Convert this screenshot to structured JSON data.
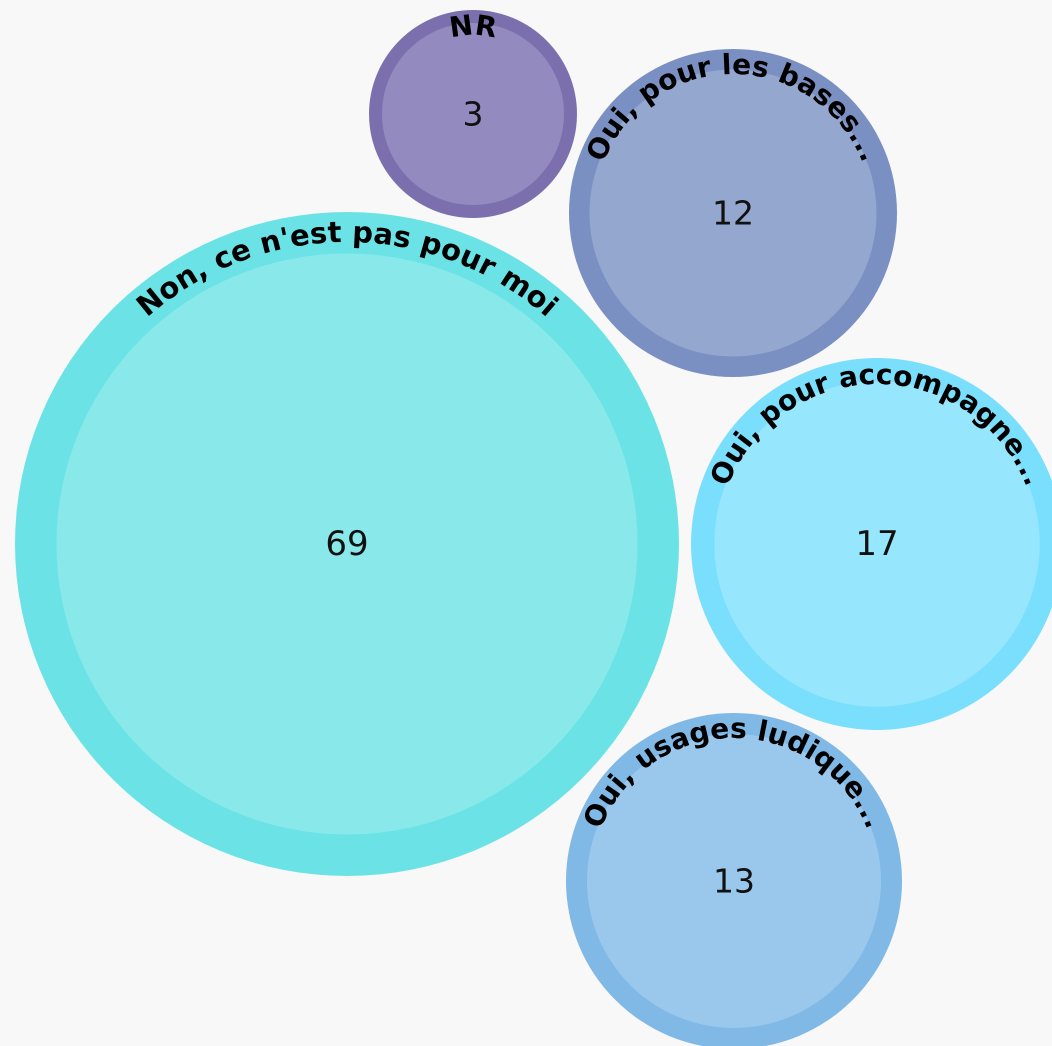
{
  "background": "#f8f8f8",
  "chart_data": {
    "type": "bubble",
    "title": "",
    "series": [
      {
        "label": "Non, ce n'est pas pour moi",
        "value": 69,
        "outer_color": "#6be3e6",
        "inner_color": "#89e9ea"
      },
      {
        "label": "Oui, pour accompagne...",
        "value": 17,
        "outer_color": "#7adefd",
        "inner_color": "#96e6fe"
      },
      {
        "label": "Oui, usages ludique...",
        "value": 13,
        "outer_color": "#80b8e6",
        "inner_color": "#9ac8ed"
      },
      {
        "label": "Oui, pour les bases...",
        "value": 12,
        "outer_color": "#7a90c3",
        "inner_color": "#93a7cf"
      },
      {
        "label": "NR",
        "value": 3,
        "outer_color": "#7b70ad",
        "inner_color": "#938bc0"
      }
    ]
  }
}
